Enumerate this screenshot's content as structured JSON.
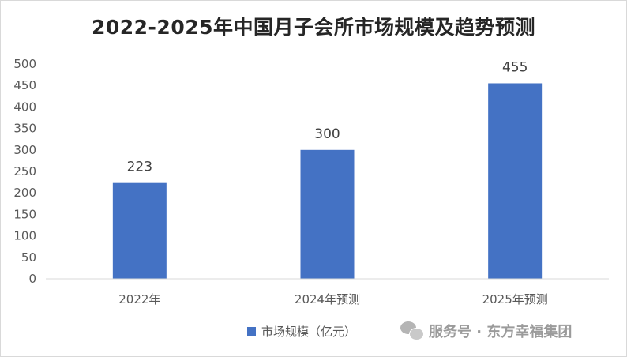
{
  "chart_data": {
    "type": "bar",
    "title": "2022-2025年中国月子会所市场规模及趋势预测",
    "categories": [
      "2022年",
      "2024年预测",
      "2025年预测"
    ],
    "series": [
      {
        "name": "市场规模（亿元）",
        "values": [
          223,
          300,
          455
        ]
      }
    ],
    "data_labels": [
      "223",
      "300",
      "455"
    ],
    "y_ticks": [
      "0",
      "50",
      "100",
      "150",
      "200",
      "250",
      "300",
      "350",
      "400",
      "450",
      "500"
    ],
    "ylim": [
      0,
      500
    ],
    "xlabel": "",
    "ylabel": "",
    "grid": false,
    "legend_position": "bottom",
    "bar_color": "#4472c4"
  },
  "watermark": {
    "icon": "wechat-icon",
    "text": "服务号 · 东方幸福集团"
  }
}
